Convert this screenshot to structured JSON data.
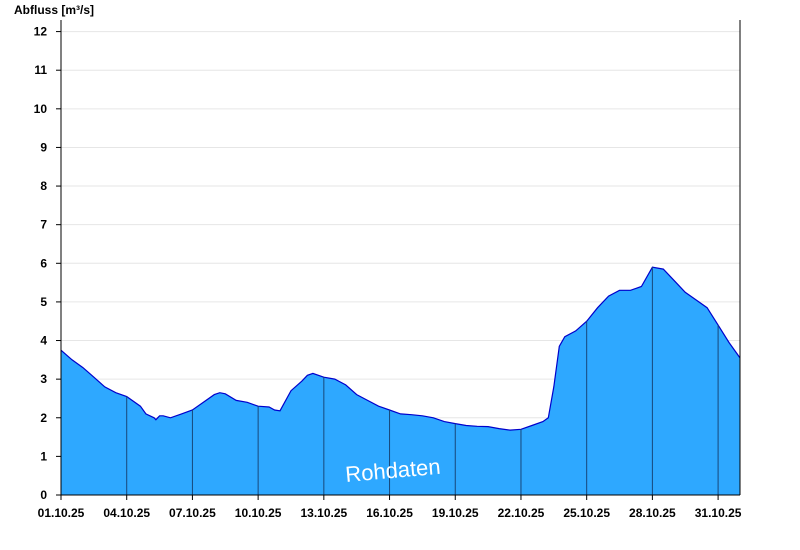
{
  "chart_data": {
    "type": "area",
    "ylabel": "Abfluss [m³/s]",
    "watermark": "Rohdaten",
    "ylim": [
      0,
      12.3
    ],
    "xlim": [
      "2025-10-01",
      "2025-11-01"
    ],
    "yticks": [
      0,
      1,
      2,
      3,
      4,
      5,
      6,
      7,
      8,
      9,
      10,
      11,
      12
    ],
    "xticks": [
      {
        "date": "2025-10-01",
        "label": "01.10.25"
      },
      {
        "date": "2025-10-04",
        "label": "04.10.25"
      },
      {
        "date": "2025-10-07",
        "label": "07.10.25"
      },
      {
        "date": "2025-10-10",
        "label": "10.10.25"
      },
      {
        "date": "2025-10-13",
        "label": "13.10.25"
      },
      {
        "date": "2025-10-16",
        "label": "16.10.25"
      },
      {
        "date": "2025-10-19",
        "label": "19.10.25"
      },
      {
        "date": "2025-10-22",
        "label": "22.10.25"
      },
      {
        "date": "2025-10-25",
        "label": "25.10.25"
      },
      {
        "date": "2025-10-28",
        "label": "28.10.25"
      },
      {
        "date": "2025-10-31",
        "label": "31.10.25"
      }
    ],
    "grid": true,
    "fill_color": "#2ea8ff",
    "line_color": "#0000cc",
    "series": [
      {
        "x": [
          "2025-10-01 00:00",
          "2025-10-01 12:00",
          "2025-10-02 00:00",
          "2025-10-02 12:00",
          "2025-10-03 00:00",
          "2025-10-03 12:00",
          "2025-10-04 00:00",
          "2025-10-04 15:00",
          "2025-10-04 21:00",
          "2025-10-05 06:00",
          "2025-10-05 08:00",
          "2025-10-05 10:00",
          "2025-10-05 12:00",
          "2025-10-05 16:00",
          "2025-10-06 00:00",
          "2025-10-06 12:00",
          "2025-10-07 00:00",
          "2025-10-07 12:00",
          "2025-10-08 00:00",
          "2025-10-08 06:00",
          "2025-10-08 12:00",
          "2025-10-09 00:00",
          "2025-10-09 12:00",
          "2025-10-10 00:00",
          "2025-10-10 12:00",
          "2025-10-10 18:00",
          "2025-10-11 00:00",
          "2025-10-11 12:00",
          "2025-10-12 00:00",
          "2025-10-12 06:00",
          "2025-10-12 12:00",
          "2025-10-13 00:00",
          "2025-10-13 12:00",
          "2025-10-14 00:00",
          "2025-10-14 12:00",
          "2025-10-15 00:00",
          "2025-10-15 12:00",
          "2025-10-16 00:00",
          "2025-10-16 12:00",
          "2025-10-17 00:00",
          "2025-10-17 12:00",
          "2025-10-18 00:00",
          "2025-10-18 12:00",
          "2025-10-19 00:00",
          "2025-10-19 12:00",
          "2025-10-20 00:00",
          "2025-10-20 12:00",
          "2025-10-21 00:00",
          "2025-10-21 12:00",
          "2025-10-22 00:00",
          "2025-10-22 12:00",
          "2025-10-23 00:00",
          "2025-10-23 06:00",
          "2025-10-23 12:00",
          "2025-10-23 18:00",
          "2025-10-24 00:00",
          "2025-10-24 12:00",
          "2025-10-25 00:00",
          "2025-10-25 12:00",
          "2025-10-26 00:00",
          "2025-10-26 12:00",
          "2025-10-27 00:00",
          "2025-10-27 12:00",
          "2025-10-28 00:00",
          "2025-10-28 12:00",
          "2025-10-29 00:00",
          "2025-10-29 12:00",
          "2025-10-30 00:00",
          "2025-10-30 12:00",
          "2025-10-31 00:00",
          "2025-10-31 12:00",
          "2025-11-01 00:00"
        ],
        "y": [
          3.75,
          3.5,
          3.3,
          3.05,
          2.8,
          2.65,
          2.55,
          2.3,
          2.1,
          2.0,
          1.95,
          2.0,
          2.05,
          2.05,
          2.0,
          2.1,
          2.2,
          2.4,
          2.6,
          2.65,
          2.62,
          2.45,
          2.4,
          2.3,
          2.28,
          2.2,
          2.18,
          2.7,
          2.95,
          3.1,
          3.15,
          3.05,
          3.0,
          2.85,
          2.6,
          2.45,
          2.3,
          2.2,
          2.1,
          2.08,
          2.05,
          2.0,
          1.9,
          1.85,
          1.8,
          1.78,
          1.77,
          1.72,
          1.68,
          1.7,
          1.8,
          1.9,
          2.0,
          2.8,
          3.85,
          4.1,
          4.25,
          4.5,
          4.85,
          5.15,
          5.3,
          5.3,
          5.4,
          5.9,
          5.85,
          5.55,
          5.25,
          5.05,
          4.85,
          4.4,
          3.95,
          3.55
        ]
      }
    ]
  }
}
